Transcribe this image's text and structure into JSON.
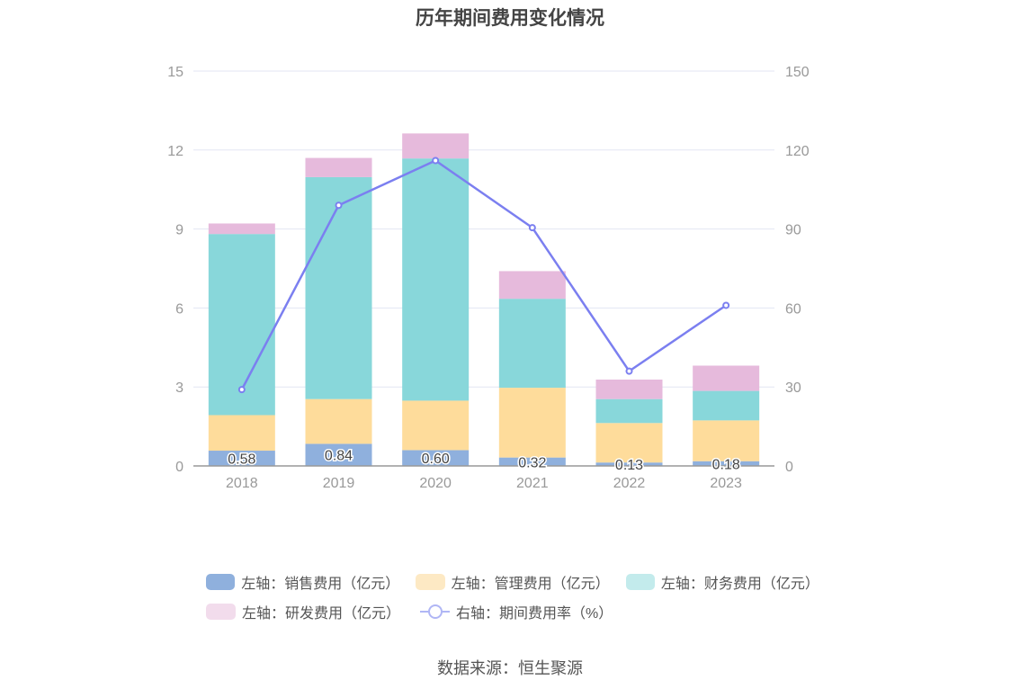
{
  "chart_data": {
    "type": "bar",
    "title": "历年期间费用变化情况",
    "categories": [
      "2018",
      "2019",
      "2020",
      "2021",
      "2022",
      "2023"
    ],
    "y_left": {
      "min": 0,
      "max": 15,
      "ticks": [
        0,
        3,
        6,
        9,
        12,
        15
      ]
    },
    "y_right": {
      "min": 0,
      "max": 150,
      "ticks": [
        0,
        30,
        60,
        90,
        120,
        150
      ]
    },
    "stacked": true,
    "series": [
      {
        "name": "左轴：销售费用（亿元）",
        "axis": "left",
        "type": "bar",
        "color": "#8fb0dd",
        "values": [
          0.58,
          0.84,
          0.6,
          0.32,
          0.13,
          0.18
        ],
        "labels": [
          "0.58",
          "0.84",
          "0.60",
          "0.32",
          "0.13",
          "0.18"
        ]
      },
      {
        "name": "左轴：管理费用（亿元）",
        "axis": "left",
        "type": "bar",
        "color": "#fedc9b",
        "values": [
          1.35,
          1.7,
          1.88,
          2.65,
          1.5,
          1.55
        ]
      },
      {
        "name": "左轴：财务费用（亿元）",
        "axis": "left",
        "type": "bar",
        "color": "#88d7da",
        "values": [
          6.88,
          8.43,
          9.2,
          3.38,
          0.91,
          1.12
        ]
      },
      {
        "name": "左轴：研发费用（亿元）",
        "axis": "left",
        "type": "bar",
        "color": "#e6badc",
        "values": [
          0.4,
          0.73,
          0.95,
          1.05,
          0.74,
          0.96
        ]
      },
      {
        "name": "右轴：期间费用率（%）",
        "axis": "right",
        "type": "line",
        "color": "#7b7ff0",
        "values": [
          29,
          99,
          116,
          90.5,
          36,
          61
        ]
      }
    ],
    "legend_position": "bottom",
    "grid": true
  },
  "source": "数据来源：恒生聚源"
}
